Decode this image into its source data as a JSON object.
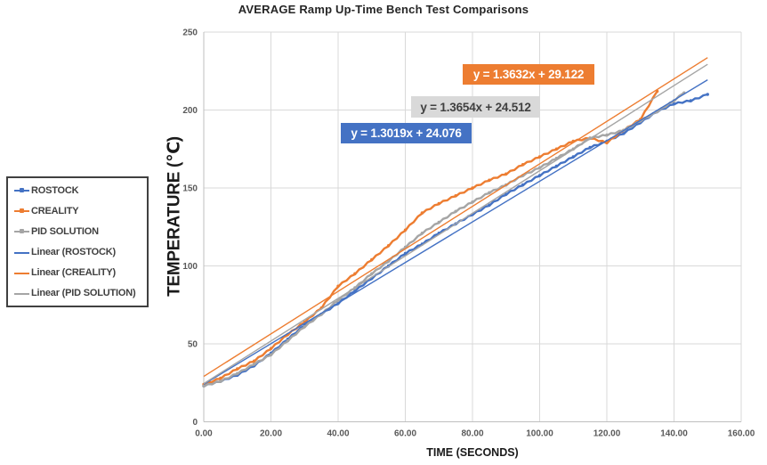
{
  "title": "AVERAGE Ramp Up-Time Bench Test Comparisons",
  "chart_data": {
    "type": "line",
    "title": "AVERAGE Ramp Up-Time Bench Test Comparisons",
    "xlabel": "TIME (SECONDS)",
    "ylabel": "TEMPERATURE (℃)",
    "xlim": [
      0,
      160
    ],
    "ylim": [
      0,
      250
    ],
    "x_ticks": [
      {
        "v": 0,
        "label": "0.00"
      },
      {
        "v": 20,
        "label": "20.00"
      },
      {
        "v": 40,
        "label": "40.00"
      },
      {
        "v": 60,
        "label": "60.00"
      },
      {
        "v": 80,
        "label": "80.00"
      },
      {
        "v": 100,
        "label": "100.00"
      },
      {
        "v": 120,
        "label": "120.00"
      },
      {
        "v": 140,
        "label": "140.00"
      },
      {
        "v": 160,
        "label": "160.00"
      }
    ],
    "y_ticks": [
      {
        "v": 0,
        "label": "0"
      },
      {
        "v": 50,
        "label": "50"
      },
      {
        "v": 100,
        "label": "100"
      },
      {
        "v": 150,
        "label": "150"
      },
      {
        "v": 200,
        "label": "200"
      },
      {
        "v": 250,
        "label": "250"
      }
    ],
    "grid": true,
    "legend_position": "outside-left",
    "series": [
      {
        "name": "ROSTOCK",
        "color": "#4472C4",
        "marker": true,
        "points": [
          [
            0,
            23
          ],
          [
            5,
            26
          ],
          [
            10,
            30
          ],
          [
            15,
            36
          ],
          [
            20,
            44
          ],
          [
            25,
            53
          ],
          [
            30,
            62
          ],
          [
            35,
            69
          ],
          [
            40,
            76
          ],
          [
            45,
            84
          ],
          [
            50,
            92
          ],
          [
            55,
            100
          ],
          [
            60,
            108
          ],
          [
            65,
            114
          ],
          [
            70,
            121
          ],
          [
            75,
            127
          ],
          [
            80,
            133
          ],
          [
            85,
            139
          ],
          [
            90,
            146
          ],
          [
            95,
            152
          ],
          [
            100,
            158
          ],
          [
            105,
            164
          ],
          [
            110,
            170
          ],
          [
            115,
            176
          ],
          [
            120,
            180
          ],
          [
            125,
            185
          ],
          [
            130,
            192
          ],
          [
            135,
            199
          ],
          [
            140,
            204
          ],
          [
            145,
            206
          ],
          [
            150,
            210
          ]
        ]
      },
      {
        "name": "CREALITY",
        "color": "#ED7D31",
        "marker": true,
        "points": [
          [
            0,
            24
          ],
          [
            5,
            28
          ],
          [
            10,
            34
          ],
          [
            15,
            39
          ],
          [
            20,
            47
          ],
          [
            25,
            56
          ],
          [
            30,
            64
          ],
          [
            35,
            73
          ],
          [
            40,
            87
          ],
          [
            45,
            95
          ],
          [
            50,
            104
          ],
          [
            55,
            113
          ],
          [
            60,
            123
          ],
          [
            65,
            134
          ],
          [
            70,
            140
          ],
          [
            75,
            145
          ],
          [
            80,
            150
          ],
          [
            85,
            155
          ],
          [
            90,
            159
          ],
          [
            95,
            165
          ],
          [
            100,
            170
          ],
          [
            105,
            175
          ],
          [
            110,
            180
          ],
          [
            115,
            182
          ],
          [
            120,
            179
          ],
          [
            125,
            187
          ],
          [
            130,
            194
          ],
          [
            135,
            212
          ]
        ]
      },
      {
        "name": "PID SOLUTION",
        "color": "#A5A5A5",
        "marker": true,
        "points": [
          [
            0,
            23
          ],
          [
            5,
            26
          ],
          [
            10,
            31
          ],
          [
            15,
            37
          ],
          [
            20,
            43
          ],
          [
            25,
            52
          ],
          [
            30,
            61
          ],
          [
            35,
            69
          ],
          [
            40,
            78
          ],
          [
            45,
            86
          ],
          [
            50,
            95
          ],
          [
            55,
            103
          ],
          [
            60,
            112
          ],
          [
            65,
            121
          ],
          [
            70,
            128
          ],
          [
            75,
            135
          ],
          [
            80,
            141
          ],
          [
            85,
            147
          ],
          [
            90,
            152
          ],
          [
            95,
            158
          ],
          [
            100,
            163
          ],
          [
            105,
            169
          ],
          [
            110,
            175
          ],
          [
            115,
            182
          ],
          [
            120,
            184
          ],
          [
            125,
            187
          ],
          [
            130,
            193
          ],
          [
            135,
            199
          ],
          [
            140,
            206
          ],
          [
            143,
            211
          ]
        ]
      }
    ],
    "trendlines": [
      {
        "name": "Linear (ROSTOCK)",
        "color": "#4472C4",
        "slope": 1.3019,
        "intercept": 24.076,
        "x_range": [
          0,
          150
        ],
        "equation": "y = 1.3019x + 24.076",
        "label_bg": "#4472C4",
        "label_fg": "#FFFFFF"
      },
      {
        "name": "Linear (CREALITY)",
        "color": "#ED7D31",
        "slope": 1.3632,
        "intercept": 29.122,
        "x_range": [
          0,
          150
        ],
        "equation": "y = 1.3632x + 29.122",
        "label_bg": "#ED7D31",
        "label_fg": "#FFFFFF"
      },
      {
        "name": "Linear (PID SOLUTION)",
        "color": "#A5A5A5",
        "slope": 1.3654,
        "intercept": 24.512,
        "x_range": [
          0,
          150
        ],
        "equation": "y = 1.3654x + 24.512",
        "label_bg": "#D9D9D9",
        "label_fg": "#404040"
      }
    ],
    "legend_items": [
      {
        "label": "ROSTOCK",
        "color": "#4472C4",
        "marker": true
      },
      {
        "label": "CREALITY",
        "color": "#ED7D31",
        "marker": true
      },
      {
        "label": "PID SOLUTION",
        "color": "#A5A5A5",
        "marker": true
      },
      {
        "label": "Linear (ROSTOCK)",
        "color": "#4472C4",
        "marker": false
      },
      {
        "label": "Linear (CREALITY)",
        "color": "#ED7D31",
        "marker": false
      },
      {
        "label": "Linear (PID SOLUTION)",
        "color": "#A5A5A5",
        "marker": false
      }
    ]
  },
  "colors": {
    "grid": "#D9D9D9",
    "axis": "#BFBFBF",
    "tick_text": "#595959",
    "title_text": "#262626",
    "legend_border": "#404040"
  }
}
